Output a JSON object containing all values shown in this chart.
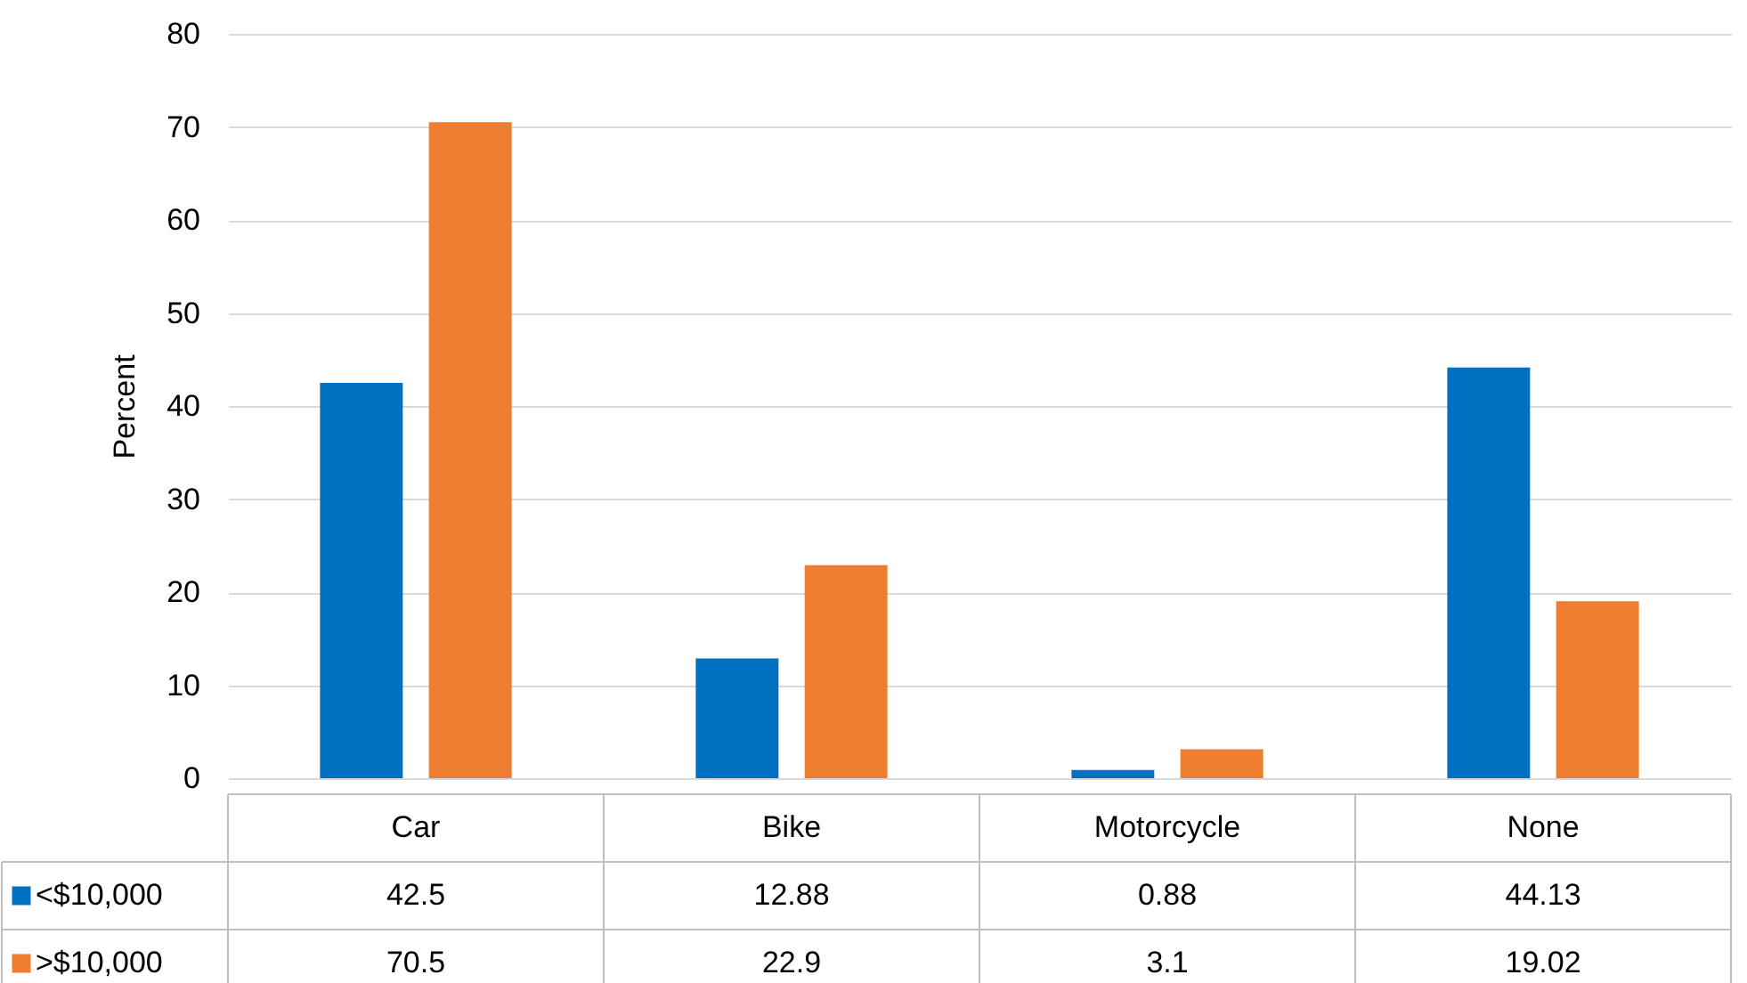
{
  "chart_data": {
    "type": "bar",
    "ylabel": "Percent",
    "categories": [
      "Car",
      "Bike",
      "Motorcycle",
      "None"
    ],
    "series": [
      {
        "name": "<$10,000",
        "color": "#0070c0",
        "values": [
          42.5,
          12.88,
          0.88,
          44.13
        ]
      },
      {
        "name": ">$10,000",
        "color": "#ed7d31",
        "values": [
          70.5,
          22.9,
          3.1,
          19.02
        ]
      }
    ],
    "ylim": [
      0,
      80
    ],
    "yticks": [
      0,
      10,
      20,
      30,
      40,
      50,
      60,
      70,
      80
    ],
    "grid": "y",
    "data_labels": true,
    "legend": "bottom"
  }
}
